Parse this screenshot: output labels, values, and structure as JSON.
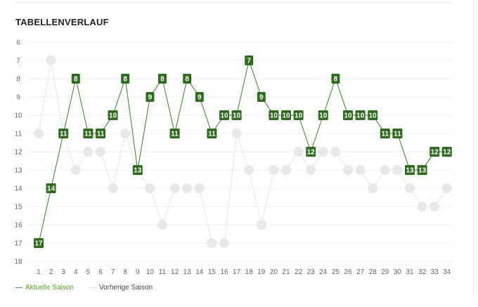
{
  "title": "TABELLENVERLAUF",
  "legend": {
    "current_label": "Aktuelle Saison",
    "previous_label": "Vorherige Saison"
  },
  "colors": {
    "current_line": "#3f7d2a",
    "current_marker": "#2e6b1e",
    "previous_line": "#e6e6e6",
    "previous_marker": "#e8e8e8",
    "grid": "#eeeeee",
    "axis_text": "#666666",
    "legend_current": "#5a9a2a"
  },
  "chart_data": {
    "type": "line",
    "x": [
      1,
      2,
      3,
      4,
      5,
      6,
      7,
      8,
      9,
      10,
      11,
      12,
      13,
      14,
      15,
      16,
      17,
      18,
      19,
      20,
      21,
      22,
      23,
      24,
      25,
      26,
      27,
      28,
      29,
      30,
      31,
      32,
      33,
      34
    ],
    "y_ticks": [
      6,
      7,
      8,
      9,
      10,
      11,
      12,
      13,
      14,
      15,
      16,
      17,
      18
    ],
    "ylim": [
      6,
      18
    ],
    "y_inverted": true,
    "grid": true,
    "legend_position": "bottom-left",
    "series": [
      {
        "name": "Aktuelle Saison",
        "values": [
          17,
          14,
          11,
          8,
          11,
          11,
          10,
          8,
          13,
          9,
          8,
          11,
          8,
          9,
          11,
          10,
          10,
          7,
          9,
          10,
          10,
          10,
          12,
          10,
          8,
          10,
          10,
          10,
          11,
          11,
          13,
          13,
          12,
          12
        ]
      },
      {
        "name": "Vorherige Saison",
        "values": [
          11,
          7,
          11,
          13,
          12,
          12,
          14,
          11,
          13,
          14,
          16,
          14,
          14,
          14,
          17,
          17,
          11,
          13,
          16,
          13,
          13,
          12,
          13,
          12,
          12,
          13,
          13,
          14,
          13,
          13,
          14,
          15,
          15,
          14
        ]
      }
    ]
  }
}
